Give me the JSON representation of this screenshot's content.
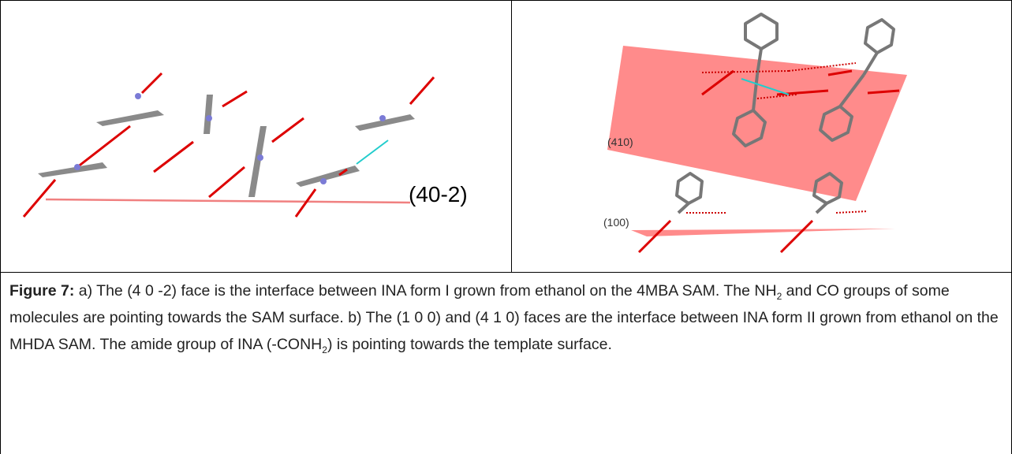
{
  "panel_a": {
    "plane_label": "(40-2)"
  },
  "panel_b": {
    "plane_labels": [
      "(410)",
      "(100)"
    ]
  },
  "caption": {
    "label": "Figure 7:",
    "segments": [
      "a) The (4 0 -2) face is the interface between INA form I grown from ethanol on the 4MBA SAM. The NH",
      "2",
      " and CO groups of some molecules are pointing towards the SAM surface. b) The (1 0 0) and (4 1 0) faces are the interface between INA form II grown from ethanol on the MHDA SAM. The amide group of INA (-CONH",
      "2",
      ") is pointing towards the template surface."
    ]
  }
}
